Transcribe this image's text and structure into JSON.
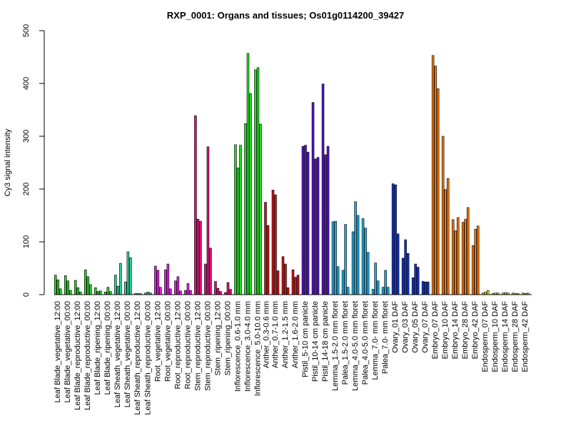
{
  "chart_data": {
    "type": "bar",
    "title": "RXP_0001: Organs and tissues; Os01g0114200_39427",
    "ylabel": "Cy3 signal intensity",
    "xlabel": "",
    "ylim": [
      0,
      500
    ],
    "yticks": [
      0,
      100,
      200,
      300,
      400,
      500
    ],
    "groups": [
      {
        "label": "Leaf Blade_vegetative_12:00",
        "color": "#33cc33",
        "values": [
          37,
          28,
          11
        ]
      },
      {
        "label": "Leaf Blade_vegetative_00:00",
        "color": "#33cc33",
        "values": [
          36,
          26,
          8
        ]
      },
      {
        "label": "Leaf Blade_reproductive_12:00",
        "color": "#33cc33",
        "values": [
          27,
          13,
          5
        ]
      },
      {
        "label": "Leaf Blade_reproductive_00:00",
        "color": "#33cc33",
        "values": [
          47,
          34,
          19
        ]
      },
      {
        "label": "Leaf Blade_ripening_12:00",
        "color": "#33cc33",
        "values": [
          13,
          6,
          7
        ]
      },
      {
        "label": "Leaf Blade_ripening_00:00",
        "color": "#33cc33",
        "values": [
          5,
          14,
          6
        ]
      },
      {
        "label": "Leaf Sheath_vegetative_12:00",
        "color": "#33cc99",
        "values": [
          37,
          16,
          59
        ]
      },
      {
        "label": "Leaf Sheath_vegetative_00:00",
        "color": "#33cc99",
        "values": [
          24,
          81,
          70
        ]
      },
      {
        "label": "Leaf Sheath_reproductive_12:00",
        "color": "#33cc99",
        "values": [
          2,
          2,
          2
        ]
      },
      {
        "label": "Leaf Sheath_reproductive_00:00",
        "color": "#33cc99",
        "values": [
          3,
          5,
          3
        ]
      },
      {
        "label": "Root_vegetative_12:00",
        "color": "#dd22dd",
        "values": [
          54,
          46,
          14
        ]
      },
      {
        "label": "Root_vegetative_00:00",
        "color": "#dd22dd",
        "values": [
          47,
          58,
          11
        ]
      },
      {
        "label": "Root_reproductive_12:00",
        "color": "#dd22dd",
        "values": [
          26,
          34,
          7
        ]
      },
      {
        "label": "Root_reproductive_00:00",
        "color": "#dd22dd",
        "values": [
          8,
          21,
          8
        ]
      },
      {
        "label": "Stem_reproductive_12:00",
        "color": "#dd1177",
        "values": [
          339,
          143,
          139
        ]
      },
      {
        "label": "Stem_reproductive_00:00",
        "color": "#dd1177",
        "values": [
          58,
          280,
          88
        ]
      },
      {
        "label": "Stem_ripening_12:00",
        "color": "#dd1177",
        "values": [
          25,
          12,
          6
        ]
      },
      {
        "label": "Stem_ripening_00:00",
        "color": "#dd1177",
        "values": [
          4,
          23,
          10
        ]
      },
      {
        "label": "Inflorescence_0.6-1.0 mm",
        "color": "#22dd22",
        "values": [
          284,
          240,
          283
        ]
      },
      {
        "label": "Inflorescence_3.0-4.0 mm",
        "color": "#22dd22",
        "values": [
          324,
          457,
          381
        ]
      },
      {
        "label": "Inflorescence_5.0-10.0 mm",
        "color": "#22dd22",
        "values": [
          426,
          430,
          323
        ]
      },
      {
        "label": "Anther_0.3-0.6 mm",
        "color": "#cc1111",
        "values": [
          175,
          131
        ]
      },
      {
        "label": "Anther_0.7-1.0 mm",
        "color": "#cc1111",
        "values": [
          198,
          189,
          45
        ]
      },
      {
        "label": "Anther_1.2-1.5 mm",
        "color": "#cc1111",
        "values": [
          72,
          58,
          13
        ]
      },
      {
        "label": "Anther_1.6-2.0 mm",
        "color": "#cc1111",
        "values": [
          47,
          33,
          37
        ]
      },
      {
        "label": "Pistil_5-10 cm panicle",
        "color": "#5511cc",
        "values": [
          281,
          283,
          270
        ]
      },
      {
        "label": "Pistil_10-14 cm panicle",
        "color": "#5511cc",
        "values": [
          364,
          257,
          260
        ]
      },
      {
        "label": "Pistil_14-18 cm panicle",
        "color": "#5511cc",
        "values": [
          399,
          265,
          281
        ]
      },
      {
        "label": "Lemma_1.5-2.0 mm floret",
        "color": "#22aadd",
        "values": [
          138,
          139,
          53
        ]
      },
      {
        "label": "Palea_1.5-2.0 mm floret",
        "color": "#22aadd",
        "values": [
          46,
          133,
          14
        ]
      },
      {
        "label": "Lemma_4.0-5.0 mm floret",
        "color": "#22aadd",
        "values": [
          119,
          176,
          150
        ]
      },
      {
        "label": "Palea_4.0-5.0 mm floret",
        "color": "#22aadd",
        "values": [
          144,
          126,
          80
        ]
      },
      {
        "label": "Lemma_7.0- mm floret",
        "color": "#22aadd",
        "values": [
          10,
          60,
          26
        ]
      },
      {
        "label": "Palea_7.0- mm floret",
        "color": "#22aadd",
        "values": [
          14,
          46,
          14
        ]
      },
      {
        "label": "Ovary_01 DAF",
        "color": "#1133cc",
        "values": [
          210,
          208,
          115
        ]
      },
      {
        "label": "Ovary_03 DAF",
        "color": "#1133cc",
        "values": [
          69,
          104,
          78
        ]
      },
      {
        "label": "Ovary_05 DAF",
        "color": "#1133cc",
        "values": [
          32,
          58,
          52
        ]
      },
      {
        "label": "Ovary_07 DAF",
        "color": "#1133cc",
        "values": [
          25,
          24,
          24
        ]
      },
      {
        "label": "Embryo_07 DAF",
        "color": "#ee7711",
        "values": [
          453,
          433,
          390
        ]
      },
      {
        "label": "Embryo_10 DAF",
        "color": "#ee7711",
        "values": [
          300,
          199,
          220
        ]
      },
      {
        "label": "Embryo_14 DAF",
        "color": "#ee7711",
        "values": [
          142,
          121,
          146
        ]
      },
      {
        "label": "Embryo_28 DAF",
        "color": "#ee7711",
        "values": [
          137,
          143,
          165
        ]
      },
      {
        "label": "Embryo_42 DAF",
        "color": "#ee7711",
        "values": [
          93,
          124,
          130
        ]
      },
      {
        "label": "Endosperm_07 DAF",
        "color": "#dddd22",
        "values": [
          3,
          5,
          8
        ]
      },
      {
        "label": "Endosperm_10 DAF",
        "color": "#dddd22",
        "values": [
          2,
          3,
          3
        ]
      },
      {
        "label": "Endosperm_14 DAF",
        "color": "#dddd22",
        "values": [
          3,
          4,
          3
        ]
      },
      {
        "label": "Endosperm_28 DAF",
        "color": "#dddd22",
        "values": [
          3,
          2,
          2
        ]
      },
      {
        "label": "Endosperm_42 DAF",
        "color": "#dddd22",
        "values": [
          3,
          2,
          3
        ]
      }
    ]
  }
}
